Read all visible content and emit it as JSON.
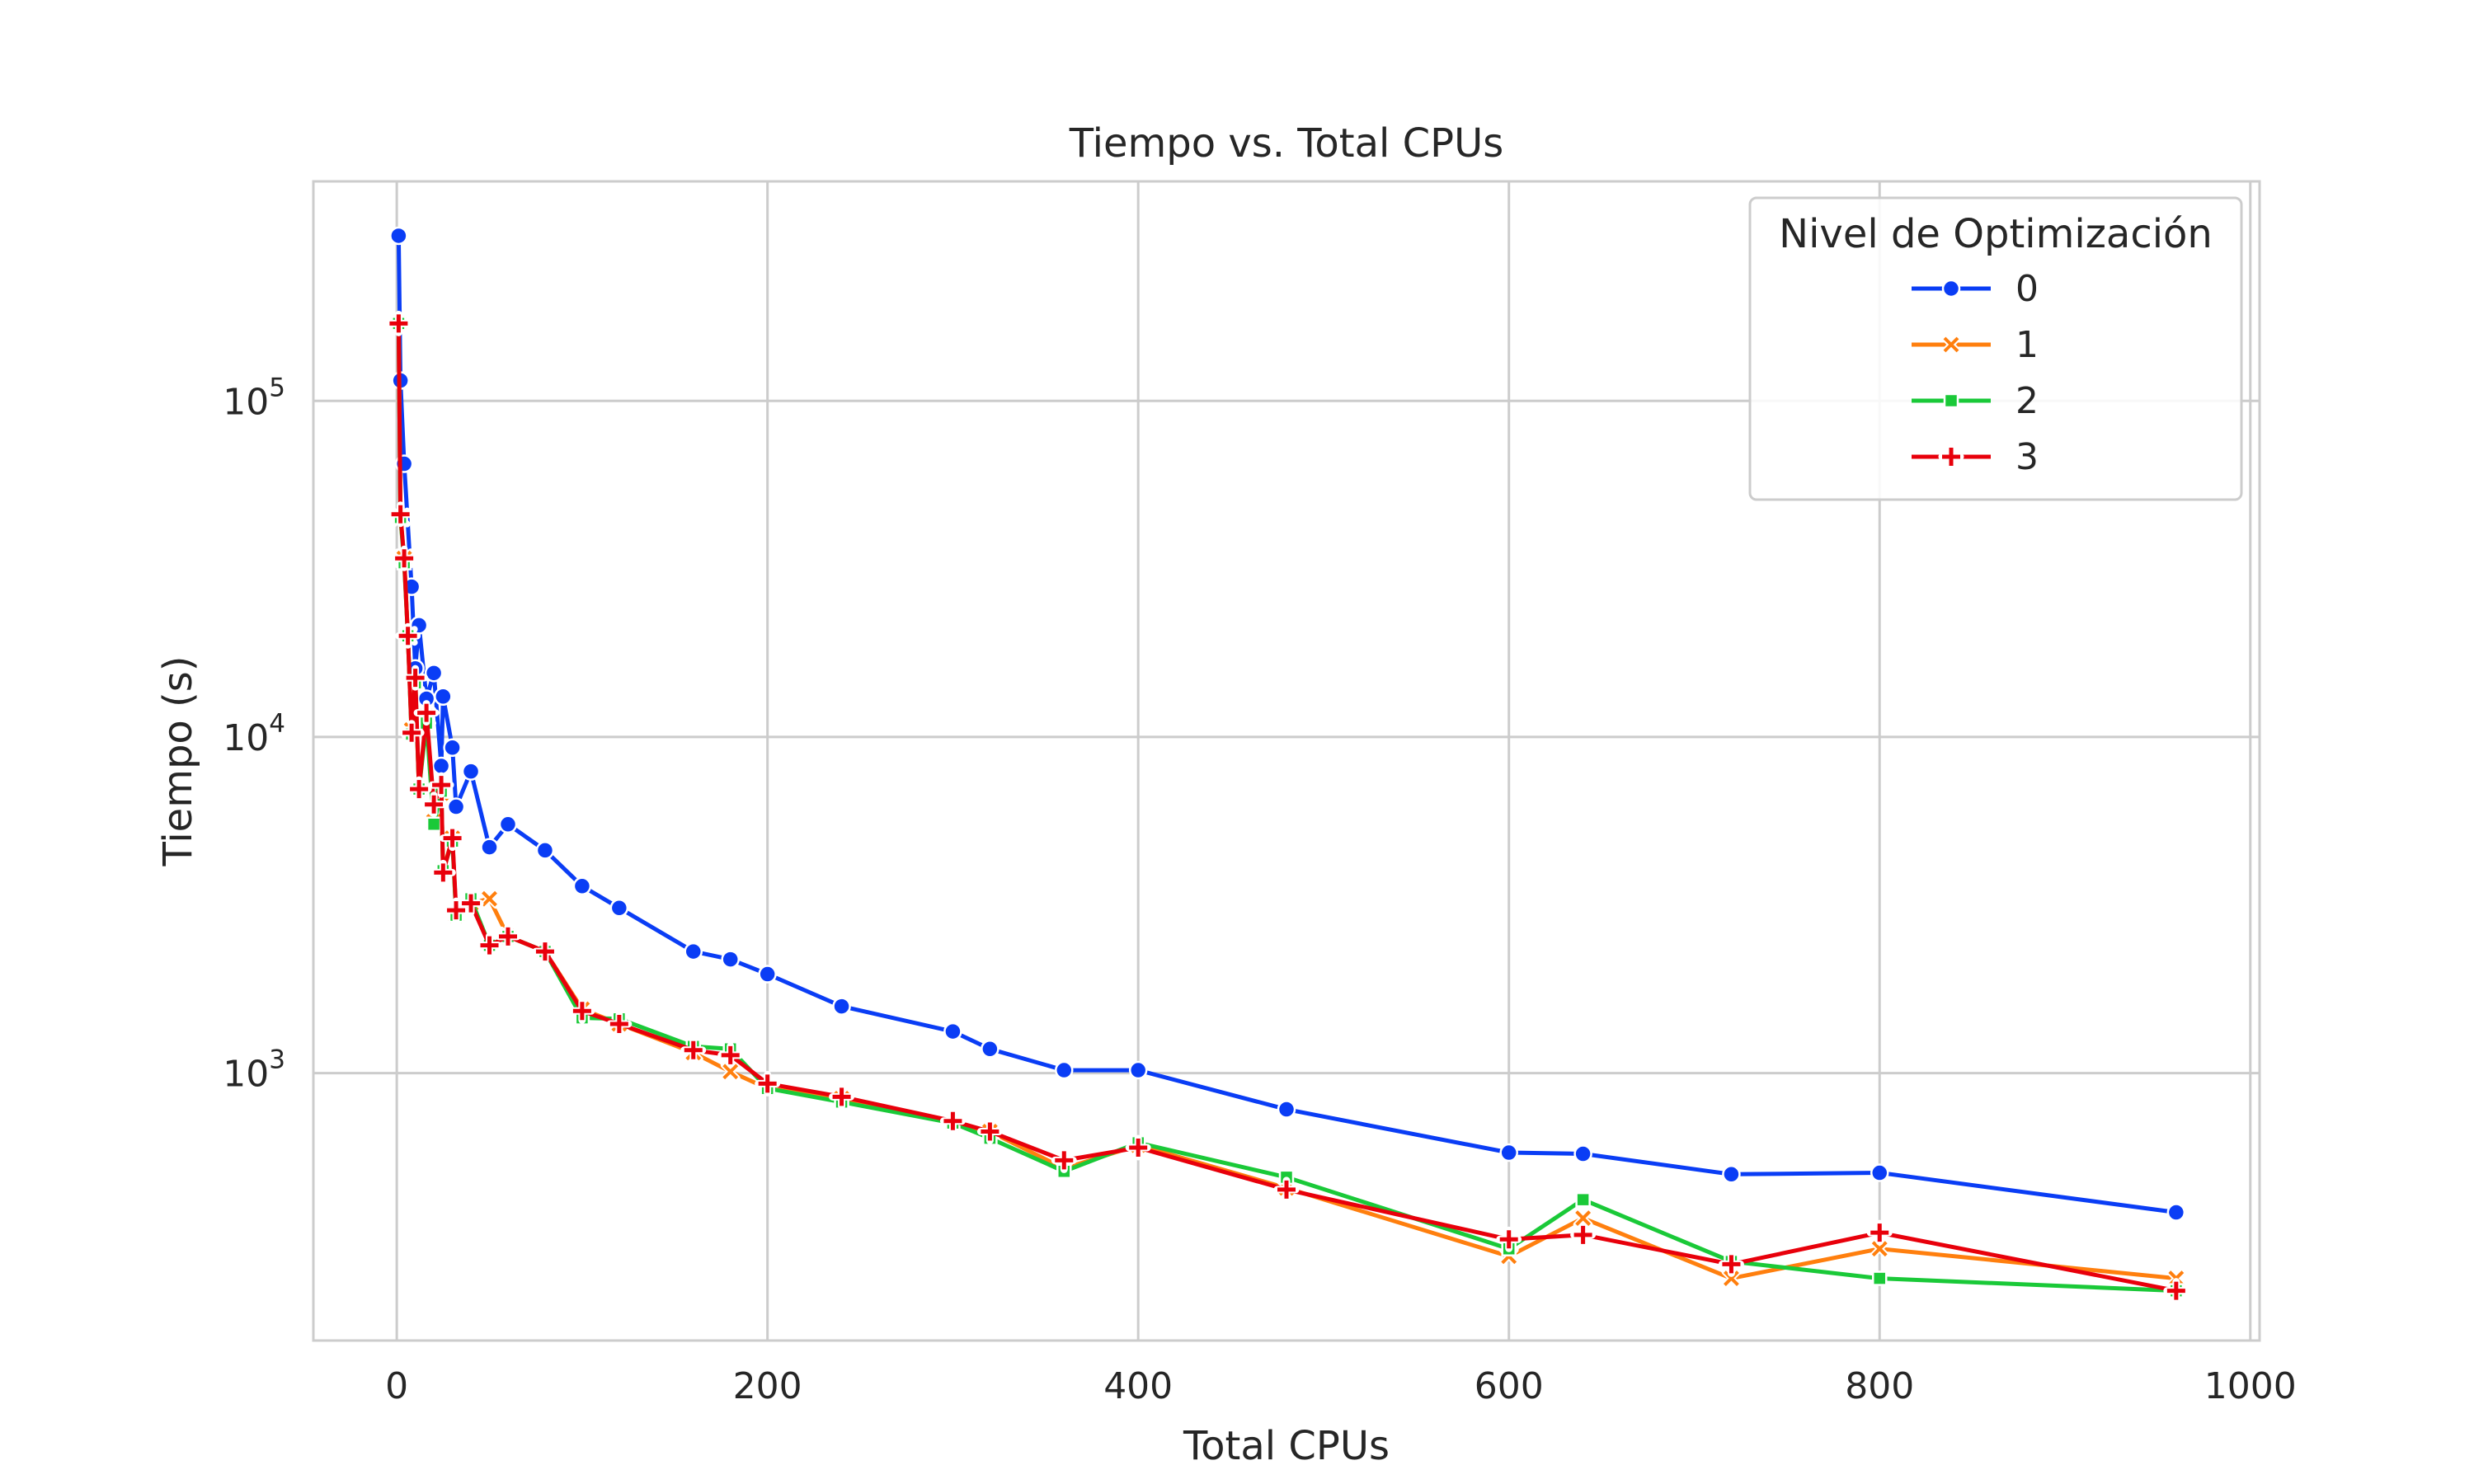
{
  "chart_data": {
    "type": "line",
    "title": "Tiempo vs. Total CPUs",
    "xlabel": "Total CPUs",
    "ylabel": "Tiempo (s)",
    "xlim": [
      -45,
      1005
    ],
    "ylim": [
      160,
      450000
    ],
    "yscale": "log",
    "grid": true,
    "legend": {
      "title": "Nivel de Optimización",
      "placement": "top-right"
    },
    "x_ticks": [
      0,
      200,
      400,
      600,
      800,
      1000
    ],
    "x_tick_labels": [
      "0",
      "200",
      "400",
      "600",
      "800",
      "1000"
    ],
    "y_ticks": [
      1000,
      10000,
      100000
    ],
    "y_tick_labels": [
      {
        "base": "10",
        "exp": "3"
      },
      {
        "base": "10",
        "exp": "4"
      },
      {
        "base": "10",
        "exp": "5"
      }
    ],
    "series": [
      {
        "name": "0",
        "color": "#0a3df5",
        "marker": "circle",
        "x": [
          1,
          2,
          4,
          8,
          10,
          12,
          16,
          20,
          24,
          25,
          30,
          32,
          40,
          50,
          60,
          80,
          100,
          120,
          160,
          180,
          200,
          240,
          300,
          320,
          360,
          400,
          480,
          600,
          640,
          720,
          800,
          960
        ],
        "y": [
          310000,
          115000,
          65000,
          28000,
          16000,
          21500,
          13000,
          15500,
          8200,
          13200,
          9300,
          6200,
          7900,
          4700,
          5500,
          4600,
          3600,
          3100,
          2300,
          2180,
          1970,
          1580,
          1330,
          1180,
          1020,
          1020,
          780,
          580,
          575,
          500,
          505,
          385
        ]
      },
      {
        "name": "1",
        "color": "#ff7f0e",
        "marker": "x",
        "x": [
          1,
          2,
          4,
          6,
          8,
          10,
          12,
          16,
          20,
          24,
          25,
          30,
          32,
          40,
          50,
          60,
          80,
          100,
          120,
          160,
          180,
          200,
          240,
          300,
          320,
          360,
          400,
          480,
          600,
          640,
          720,
          800,
          960
        ],
        "y": [
          170000,
          45000,
          34000,
          20000,
          10500,
          14500,
          7000,
          11500,
          5600,
          6800,
          4000,
          5000,
          2950,
          3200,
          3300,
          2550,
          2300,
          1550,
          1400,
          1150,
          1010,
          900,
          840,
          710,
          670,
          520,
          610,
          455,
          285,
          370,
          245,
          300,
          245
        ]
      },
      {
        "name": "2",
        "color": "#1ac938",
        "marker": "square",
        "x": [
          1,
          2,
          4,
          6,
          8,
          10,
          12,
          16,
          20,
          24,
          25,
          30,
          32,
          40,
          50,
          60,
          80,
          100,
          120,
          160,
          180,
          200,
          240,
          300,
          320,
          360,
          400,
          480,
          600,
          640,
          720,
          800,
          960
        ],
        "y": [
          170000,
          45000,
          33000,
          20000,
          10200,
          14500,
          7000,
          11000,
          5500,
          6900,
          4000,
          4900,
          2950,
          3300,
          2400,
          2550,
          2300,
          1460,
          1450,
          1200,
          1180,
          900,
          820,
          710,
          640,
          510,
          620,
          490,
          300,
          420,
          275,
          245,
          225
        ]
      },
      {
        "name": "3",
        "color": "#e8000b",
        "marker": "plus",
        "x": [
          1,
          2,
          4,
          6,
          8,
          10,
          12,
          16,
          20,
          24,
          25,
          30,
          32,
          40,
          50,
          60,
          80,
          100,
          120,
          160,
          180,
          200,
          240,
          300,
          320,
          360,
          400,
          480,
          600,
          640,
          720,
          800,
          960
        ],
        "y": [
          170000,
          46000,
          34000,
          20000,
          10300,
          15000,
          7000,
          11800,
          6300,
          7200,
          3950,
          5000,
          3050,
          3200,
          2400,
          2550,
          2300,
          1530,
          1400,
          1170,
          1130,
          930,
          850,
          720,
          670,
          550,
          600,
          450,
          320,
          330,
          270,
          335,
          225
        ]
      }
    ]
  }
}
